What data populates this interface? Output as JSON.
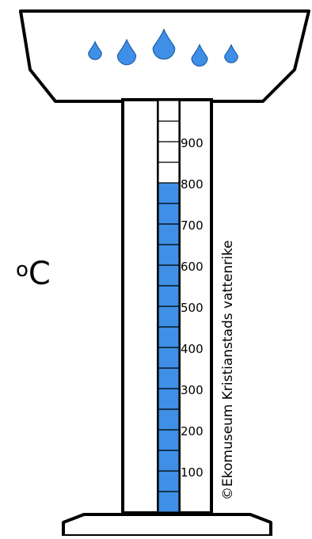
{
  "unit": {
    "degree": "o",
    "letter": "C"
  },
  "credit": "©Ekomuseum Kristianstads vattenrike",
  "scale": {
    "labels": [
      "100",
      "200",
      "300",
      "400",
      "500",
      "600",
      "700",
      "800",
      "900"
    ],
    "filled_level": 800,
    "max_level": 1000
  },
  "colors": {
    "fill": "#3f8fe6",
    "outline": "#000000",
    "empty": "#ffffff"
  },
  "drops": [
    "water-drop-icon",
    "water-drop-icon",
    "water-drop-icon",
    "water-drop-icon",
    "water-drop-icon"
  ]
}
